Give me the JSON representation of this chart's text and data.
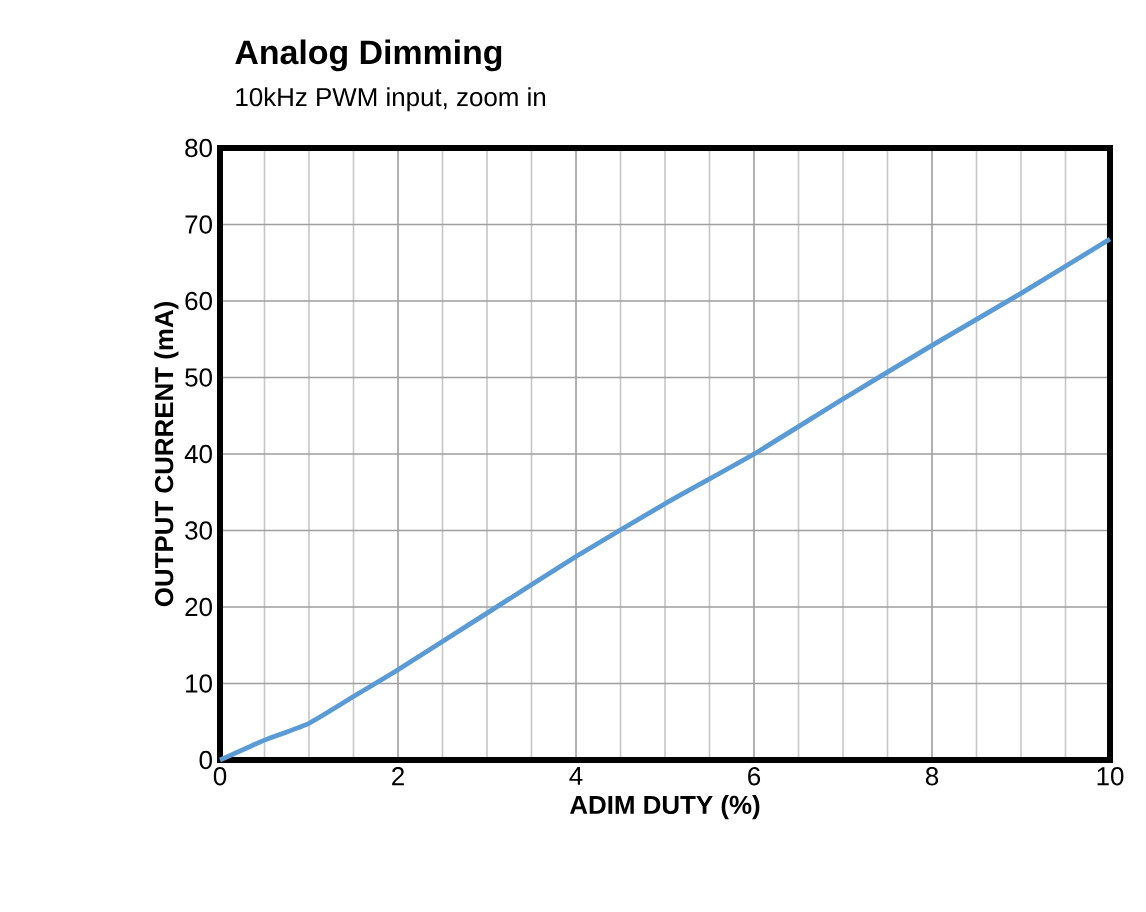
{
  "chart_data": {
    "type": "line",
    "title": "Analog Dimming",
    "subtitle": "10kHz PWM input, zoom in",
    "xlabel": "ADIM DUTY (%)",
    "ylabel": "OUTPUT CURRENT (mA)",
    "x": [
      0,
      0.5,
      1,
      1.5,
      2,
      3,
      4,
      5,
      6,
      7,
      8,
      9,
      10
    ],
    "series": [
      {
        "color": "#5b9bd5",
        "values": [
          0,
          2.6,
          4.8,
          8.3,
          11.8,
          19.2,
          26.6,
          33.5,
          40,
          47.2,
          54.2,
          61,
          68.1
        ]
      }
    ],
    "xlim": [
      0,
      10
    ],
    "ylim": [
      0,
      80
    ],
    "xticks": [
      0,
      2,
      4,
      6,
      8,
      10
    ],
    "yticks": [
      0,
      10,
      20,
      30,
      40,
      50,
      60,
      70,
      80
    ],
    "grid": true,
    "marker": "none",
    "line_style": "solid"
  }
}
